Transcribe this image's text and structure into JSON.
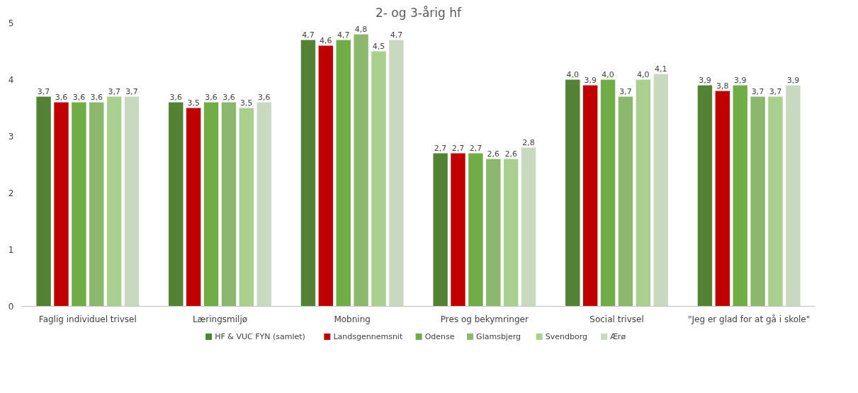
{
  "chart_data": {
    "type": "bar",
    "title": "2- og 3-årig hf",
    "categories": [
      "Faglig individuel trivsel",
      "Læringsmiljø",
      "Mobning",
      "Pres og bekymringer",
      "Social trivsel",
      "\"Jeg er glad for at gå i skole\""
    ],
    "series": [
      {
        "name": "HF & VUC FYN (samlet)",
        "color": "#548235",
        "values": [
          3.7,
          3.6,
          4.7,
          2.7,
          4.0,
          3.9
        ],
        "value_labels": [
          "3,7",
          "3,6",
          "4,7",
          "2,7",
          "4,0",
          "3,9"
        ]
      },
      {
        "name": "Landsgennemsnit",
        "color": "#c00000",
        "values": [
          3.6,
          3.5,
          4.6,
          2.7,
          3.9,
          3.8
        ],
        "value_labels": [
          "3,6",
          "3,5",
          "4,6",
          "2,7",
          "3,9",
          "3,8"
        ]
      },
      {
        "name": "Odense",
        "color": "#70ad47",
        "values": [
          3.6,
          3.6,
          4.7,
          2.7,
          4.0,
          3.9
        ],
        "value_labels": [
          "3,6",
          "3,6",
          "4,7",
          "2,7",
          "4,0",
          "3,9"
        ]
      },
      {
        "name": "Glamsbjerg",
        "color": "#8cb86e",
        "values": [
          3.6,
          3.6,
          4.8,
          2.6,
          3.7,
          3.7
        ],
        "value_labels": [
          "3,6",
          "3,6",
          "4,8",
          "2,6",
          "3,7",
          "3,7"
        ]
      },
      {
        "name": "Svendborg",
        "color": "#a9d08e",
        "values": [
          3.7,
          3.5,
          4.5,
          2.6,
          4.0,
          3.7
        ],
        "value_labels": [
          "3,7",
          "3,5",
          "4,5",
          "2,6",
          "4,0",
          "3,7"
        ]
      },
      {
        "name": "Ærø",
        "color": "#c9d9bf",
        "values": [
          3.7,
          3.6,
          4.7,
          2.8,
          4.1,
          3.9
        ],
        "value_labels": [
          "3,7",
          "3,6",
          "4,7",
          "2,8",
          "4,1",
          "3,9"
        ]
      }
    ],
    "ylim": [
      0,
      5
    ],
    "yticks": [
      0,
      1,
      2,
      3,
      4,
      5
    ],
    "grid": false,
    "legend": "bottom"
  }
}
